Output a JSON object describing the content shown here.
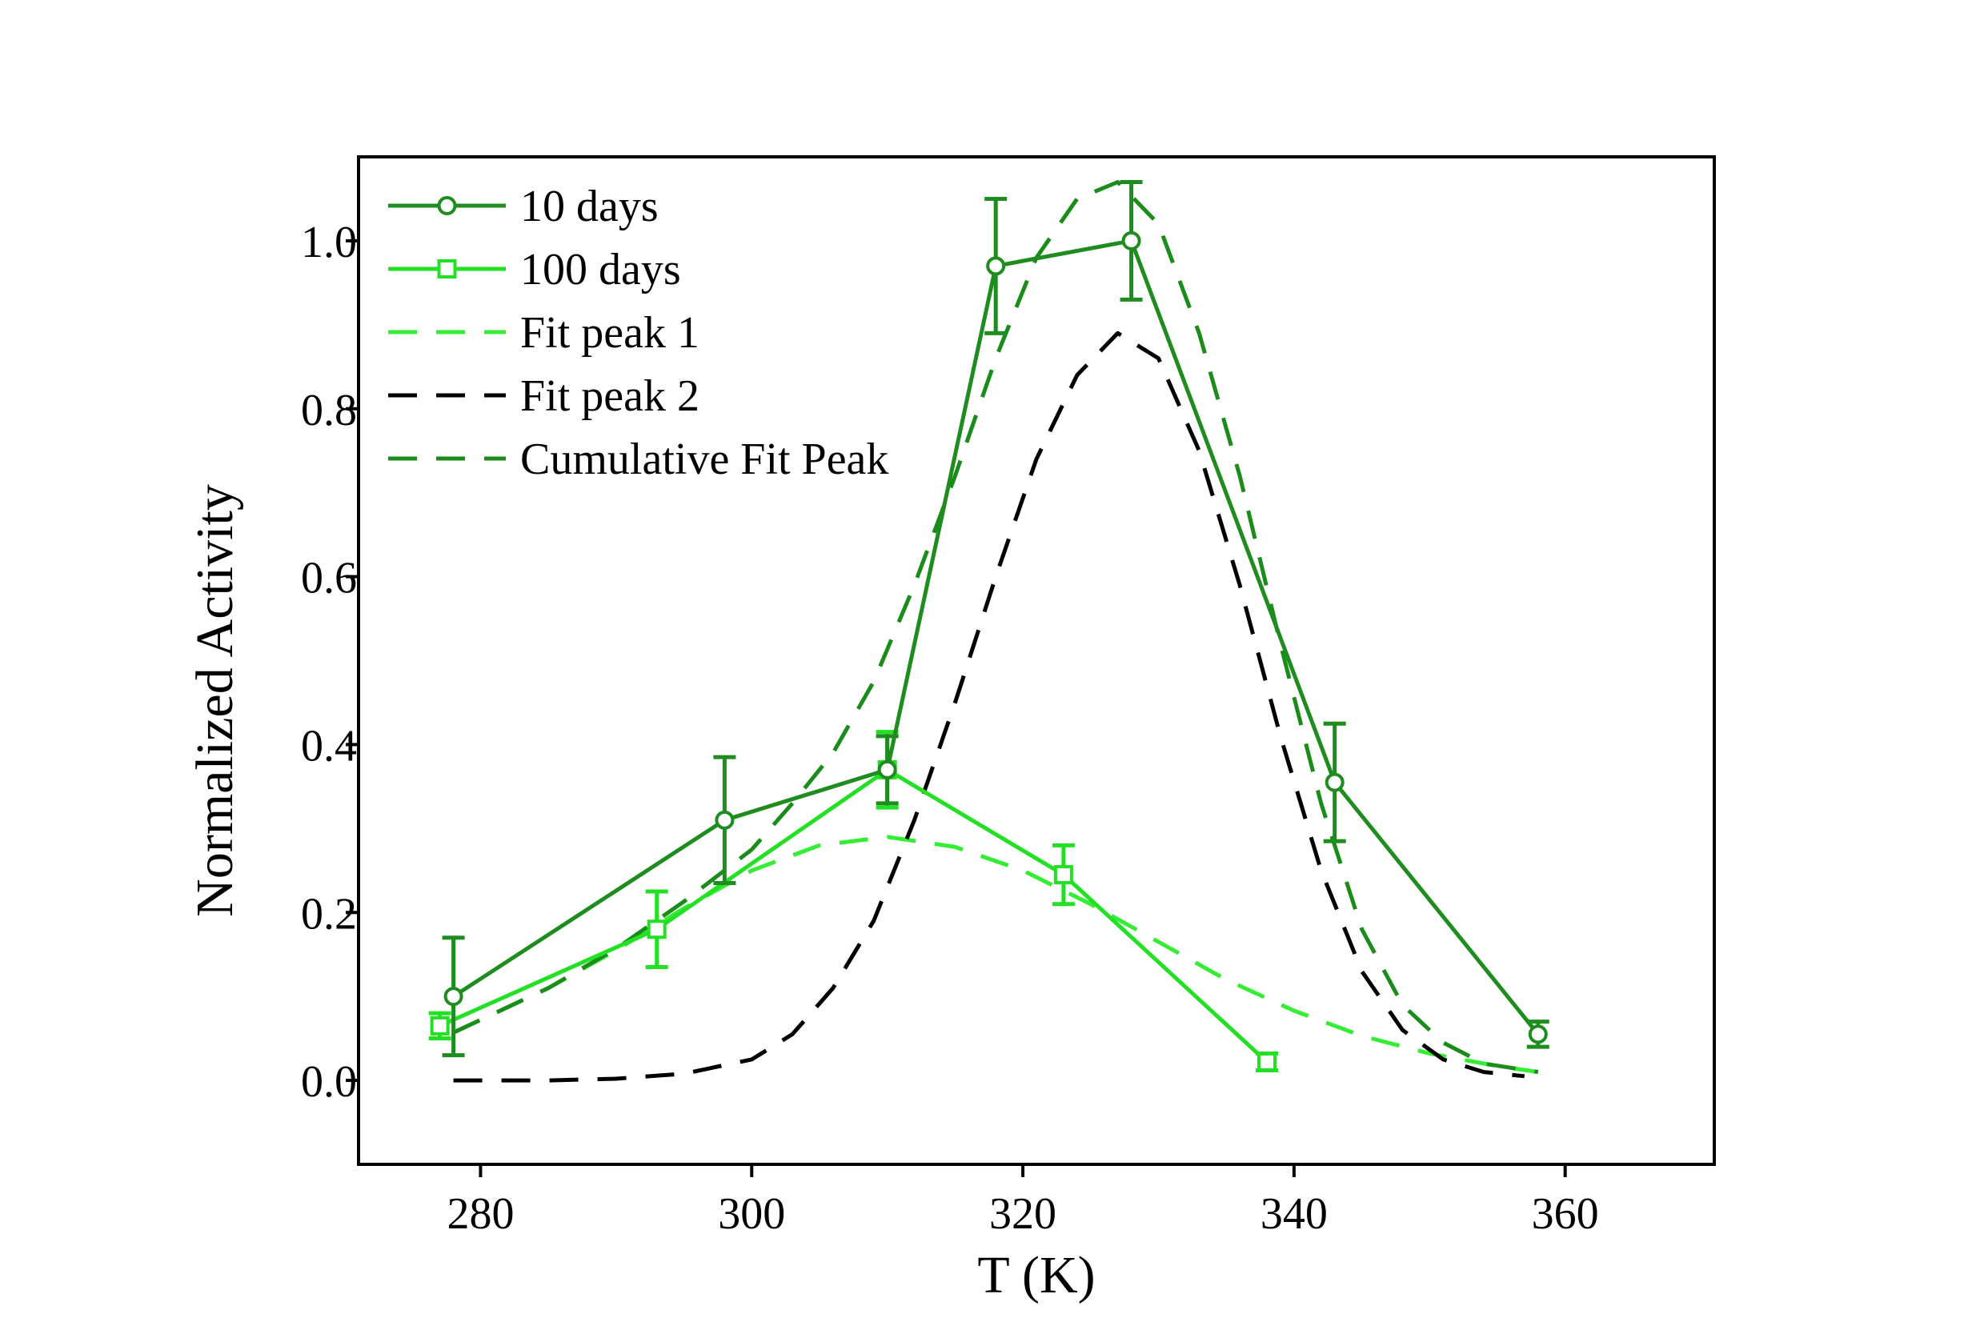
{
  "chart_data": {
    "type": "line",
    "title": "",
    "xlabel": "T (K)",
    "ylabel": "Normalized Activity",
    "xlim": [
      271,
      371
    ],
    "ylim": [
      -0.1,
      1.1
    ],
    "xticks": [
      280,
      300,
      320,
      340,
      360
    ],
    "xtick_labels": [
      "280",
      "300",
      "320",
      "340",
      "360"
    ],
    "yticks": [
      0.0,
      0.2,
      0.4,
      0.6,
      0.8,
      1.0
    ],
    "ytick_labels": [
      "0.0",
      "0.2",
      "0.4",
      "0.6",
      "0.8",
      "1.0"
    ],
    "legend_position": "top-left",
    "grid": false,
    "series": [
      {
        "name": "10 days",
        "style": "solid",
        "marker": "circle",
        "color": "#1e8c1e",
        "x": [
          278,
          298,
          310,
          318,
          328,
          343,
          358
        ],
        "y": [
          0.1,
          0.31,
          0.37,
          0.97,
          1.0,
          0.355,
          0.055
        ],
        "err": [
          0.07,
          0.075,
          0.04,
          0.08,
          0.07,
          0.07,
          0.015
        ]
      },
      {
        "name": "100 days",
        "style": "solid",
        "marker": "square",
        "color": "#22e022",
        "x": [
          277,
          293,
          310,
          323,
          338
        ],
        "y": [
          0.065,
          0.18,
          0.37,
          0.245,
          0.022
        ],
        "err": [
          0.015,
          0.045,
          0.045,
          0.035,
          0.01
        ]
      },
      {
        "name": "Fit peak 1",
        "style": "dashed",
        "marker": "none",
        "color": "#33ee33",
        "x": [
          278,
          285,
          290,
          295,
          300,
          305,
          310,
          315,
          320,
          325,
          330,
          335,
          340,
          345,
          350,
          355,
          358
        ],
        "y": [
          0.057,
          0.11,
          0.155,
          0.205,
          0.25,
          0.28,
          0.29,
          0.278,
          0.25,
          0.21,
          0.165,
          0.12,
          0.083,
          0.053,
          0.032,
          0.017,
          0.01
        ]
      },
      {
        "name": "Fit peak 2",
        "style": "dashed",
        "marker": "none",
        "color": "#000000",
        "x": [
          278,
          285,
          290,
          295,
          300,
          303,
          306,
          309,
          312,
          315,
          318,
          321,
          324,
          327,
          330,
          333,
          336,
          339,
          342,
          345,
          348,
          351,
          354,
          357
        ],
        "y": [
          0.0,
          0.0,
          0.002,
          0.008,
          0.025,
          0.055,
          0.11,
          0.19,
          0.31,
          0.45,
          0.6,
          0.74,
          0.84,
          0.89,
          0.86,
          0.75,
          0.59,
          0.41,
          0.25,
          0.13,
          0.06,
          0.025,
          0.01,
          0.005
        ]
      },
      {
        "name": "Cumulative Fit Peak",
        "style": "dashed",
        "marker": "none",
        "color": "#1a8c1a",
        "x": [
          278,
          285,
          290,
          295,
          300,
          303,
          306,
          309,
          312,
          315,
          318,
          321,
          324,
          327,
          330,
          333,
          336,
          339,
          342,
          345,
          348,
          351,
          354,
          358
        ],
        "y": [
          0.057,
          0.11,
          0.157,
          0.213,
          0.275,
          0.33,
          0.39,
          0.475,
          0.59,
          0.72,
          0.86,
          0.98,
          1.05,
          1.07,
          1.02,
          0.89,
          0.72,
          0.52,
          0.33,
          0.18,
          0.09,
          0.045,
          0.02,
          0.01
        ]
      }
    ]
  }
}
